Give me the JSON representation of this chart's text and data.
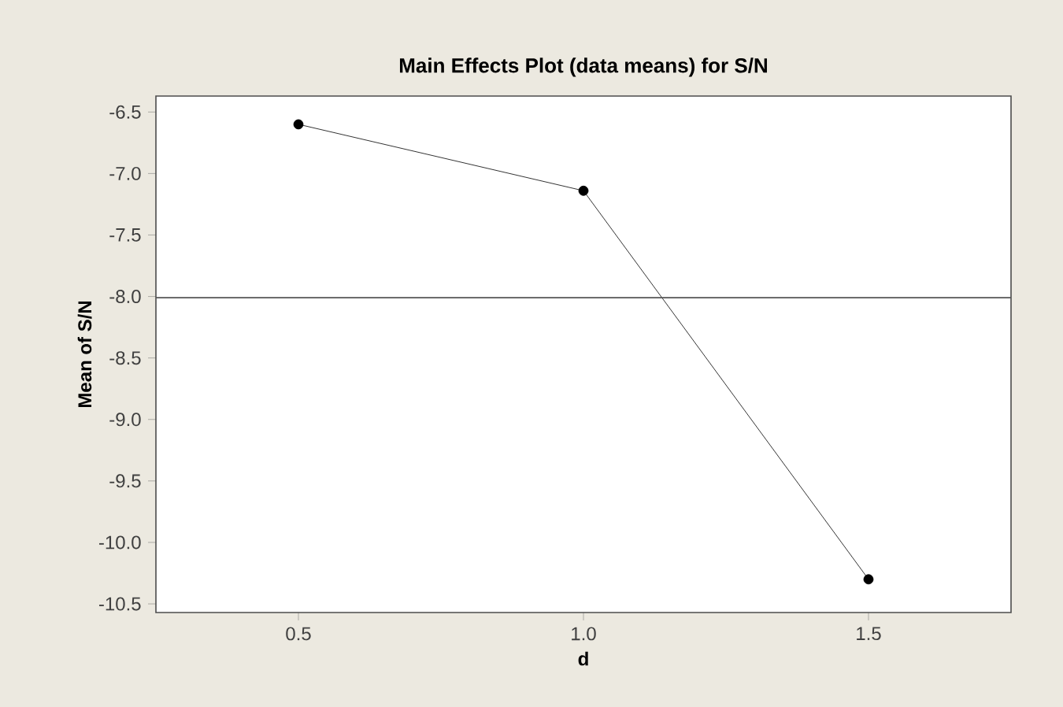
{
  "chart_data": {
    "type": "line",
    "title": "Main Effects Plot (data means) for S/N",
    "xlabel": "d",
    "ylabel": "Mean of S/N",
    "x": [
      0.5,
      1.0,
      1.5
    ],
    "series": [
      {
        "color": "#000000",
        "values": [
          -6.6,
          -7.14,
          -10.3
        ]
      }
    ],
    "marker": "circle",
    "line_style": "solid",
    "grid": false,
    "xlim": [
      0.25,
      1.75
    ],
    "ylim": [
      -10.57,
      -6.37
    ],
    "xticks": [
      {
        "value": 0.5,
        "label": "0.5"
      },
      {
        "value": 1.0,
        "label": "1.0"
      },
      {
        "value": 1.5,
        "label": "1.5"
      }
    ],
    "yticks": [
      {
        "value": -6.5,
        "label": "-6.5"
      },
      {
        "value": -7.0,
        "label": "-7.0"
      },
      {
        "value": -7.5,
        "label": "-7.5"
      },
      {
        "value": -8.0,
        "label": "-8.0"
      },
      {
        "value": -8.5,
        "label": "-8.5"
      },
      {
        "value": -9.0,
        "label": "-9.0"
      },
      {
        "value": -9.5,
        "label": "-9.5"
      },
      {
        "value": -10.0,
        "label": "-10.0"
      },
      {
        "value": -10.5,
        "label": "-10.5"
      }
    ],
    "ref_lines": [
      {
        "axis": "y",
        "value": -8.01,
        "color": "#555555"
      }
    ]
  }
}
